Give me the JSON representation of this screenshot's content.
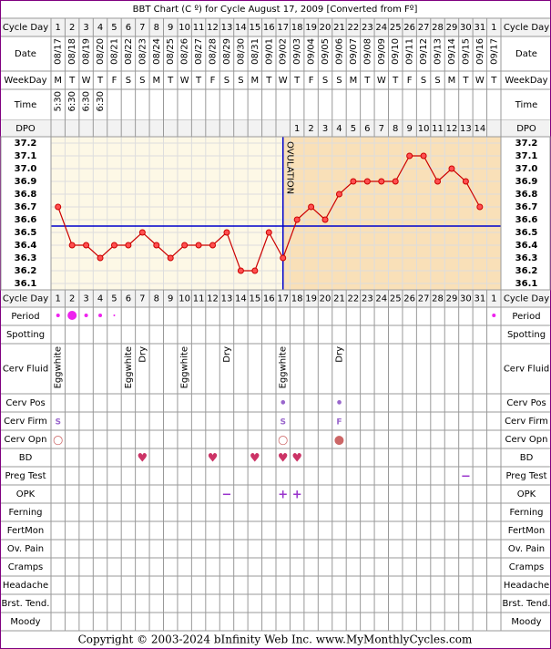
{
  "title": "BBT Chart (C º) for Cycle August 17, 2009  [Converted from Fº]",
  "copyright": "Copyright © 2003-2024 bInfinity Web Inc.     www.MyMonthlyCycles.com",
  "header_rows": {
    "cycle_day": "Cycle Day",
    "date": "Date",
    "weekday": "WeekDay",
    "time": "Time",
    "dpo": "DPO"
  },
  "dates": [
    "08/17",
    "08/18",
    "08/19",
    "08/20",
    "08/21",
    "08/22",
    "08/23",
    "08/24",
    "08/25",
    "08/26",
    "08/27",
    "08/28",
    "08/29",
    "08/30",
    "08/31",
    "09/01",
    "09/02",
    "09/03",
    "09/04",
    "09/05",
    "09/06",
    "09/07",
    "09/08",
    "09/09",
    "09/10",
    "09/11",
    "09/12",
    "09/13",
    "09/14",
    "09/15",
    "09/16",
    "09/17"
  ],
  "weekdays": [
    "M",
    "T",
    "W",
    "T",
    "F",
    "S",
    "S",
    "M",
    "T",
    "W",
    "T",
    "F",
    "S",
    "S",
    "M",
    "T",
    "W",
    "T",
    "F",
    "S",
    "S",
    "M",
    "T",
    "W",
    "T",
    "F",
    "S",
    "S",
    "M",
    "T",
    "W",
    "T"
  ],
  "times": {
    "0": "5:30",
    "1": "6:30",
    "2": "6:30",
    "3": "6:30"
  },
  "dpo": {
    "17": 1,
    "18": 2,
    "19": 3,
    "20": 4,
    "21": 5,
    "22": 6,
    "23": 7,
    "24": 8,
    "25": 9,
    "26": 10,
    "27": 11,
    "28": 12,
    "29": 13,
    "30": 14
  },
  "chart_data": {
    "type": "line",
    "categories": [
      1,
      2,
      3,
      4,
      5,
      6,
      7,
      8,
      9,
      10,
      11,
      12,
      13,
      14,
      15,
      16,
      17,
      18,
      19,
      20,
      21,
      22,
      23,
      24,
      25,
      26,
      27,
      28,
      29,
      30,
      31,
      1
    ],
    "values": [
      36.7,
      36.4,
      36.4,
      36.3,
      36.4,
      36.4,
      36.5,
      36.4,
      36.3,
      36.4,
      36.4,
      36.4,
      36.5,
      36.2,
      36.2,
      36.5,
      36.3,
      36.6,
      36.7,
      36.6,
      36.8,
      36.9,
      36.9,
      36.9,
      36.9,
      37.1,
      37.1,
      36.9,
      37.0,
      36.9,
      36.7,
      null
    ],
    "color": "#cc0000",
    "ylim": [
      36.05,
      37.25
    ],
    "yticks": [
      37.2,
      37.1,
      {
        "value": 37.0,
        "label": "37.0"
      },
      36.9,
      36.8,
      36.7,
      36.6,
      36.5,
      36.4,
      36.3,
      36.2,
      36.1
    ],
    "coverline": 36.55,
    "ovulation_day": 17,
    "ovulation_label": "OVULATION"
  },
  "period": {
    "label": "Period",
    "values": {
      "0": 2,
      "1": 5,
      "2": 2,
      "3": 2,
      "4": 1,
      "31": 2
    }
  },
  "rows": [
    {
      "label": "Spotting",
      "cells": {}
    },
    {
      "label": "Cerv Fluid",
      "cells": {
        "0": "Eggwhite",
        "5": "Eggwhite",
        "6": "Dry",
        "9": "Eggwhite",
        "12": "Dry",
        "16": "Eggwhite",
        "20": "Dry"
      }
    },
    {
      "label": "Cerv Pos",
      "cells": {
        "16": "•",
        "20": "•"
      }
    },
    {
      "label": "Cerv Firm",
      "cells": {
        "0": "S",
        "16": "S",
        "20": "F"
      }
    },
    {
      "label": "Cerv Opn",
      "cells": {
        "0": "○",
        "16": "○",
        "20": "●"
      }
    },
    {
      "label": "BD",
      "cells": {
        "6": "♥",
        "11": "♥",
        "14": "♥",
        "16": "♥",
        "17": "♥"
      }
    },
    {
      "label": "Preg Test",
      "cells": {
        "29": "−"
      }
    },
    {
      "label": "OPK",
      "cells": {
        "12": "−",
        "16": "+",
        "17": "+"
      }
    },
    {
      "label": "Ferning",
      "cells": {}
    },
    {
      "label": "FertMon",
      "cells": {}
    },
    {
      "label": "Ov. Pain",
      "cells": {}
    },
    {
      "label": "Cramps",
      "cells": {}
    },
    {
      "label": "Headache",
      "cells": {}
    },
    {
      "label": "Brst. Tend.",
      "cells": {}
    },
    {
      "label": "Moody",
      "cells": {}
    }
  ]
}
